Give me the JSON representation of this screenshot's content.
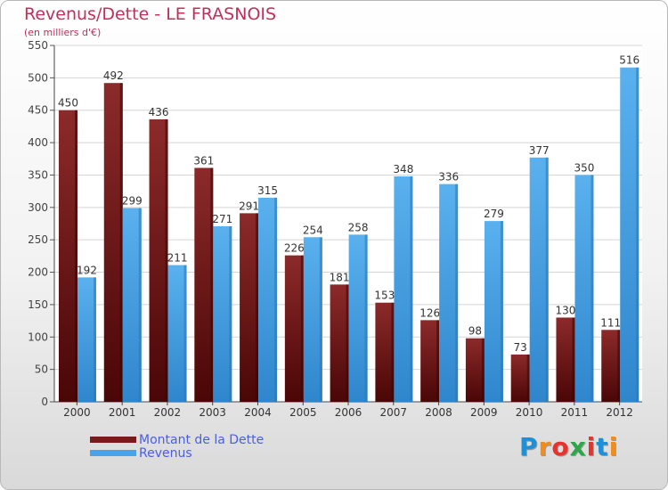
{
  "title": "Revenus/Dette - LE FRASNOIS",
  "subtitle": "(en milliers d'€)",
  "logo": {
    "text": "Proxiti",
    "letter_colors": [
      "#1e90d6",
      "#f28c1b",
      "#e8322b",
      "#2aa84a",
      "#e8322b",
      "#1e90d6",
      "#f28c1b"
    ]
  },
  "chart_data": {
    "type": "bar",
    "categories": [
      "2000",
      "2001",
      "2002",
      "2003",
      "2004",
      "2005",
      "2006",
      "2007",
      "2008",
      "2009",
      "2010",
      "2011",
      "2012"
    ],
    "series": [
      {
        "name": "Montant de la Dette",
        "color": "#7a1a1a",
        "values": [
          450,
          492,
          436,
          361,
          291,
          226,
          181,
          153,
          126,
          98,
          73,
          130,
          111
        ]
      },
      {
        "name": "Revenus",
        "color": "#4aa3e6",
        "values": [
          192,
          299,
          211,
          271,
          315,
          254,
          258,
          348,
          336,
          279,
          377,
          350,
          516
        ]
      }
    ],
    "ylim": [
      0,
      550
    ],
    "yticks": [
      0,
      50,
      100,
      150,
      200,
      250,
      300,
      350,
      400,
      450,
      500,
      550
    ],
    "grid": true,
    "legend_position": "bottom-left"
  }
}
